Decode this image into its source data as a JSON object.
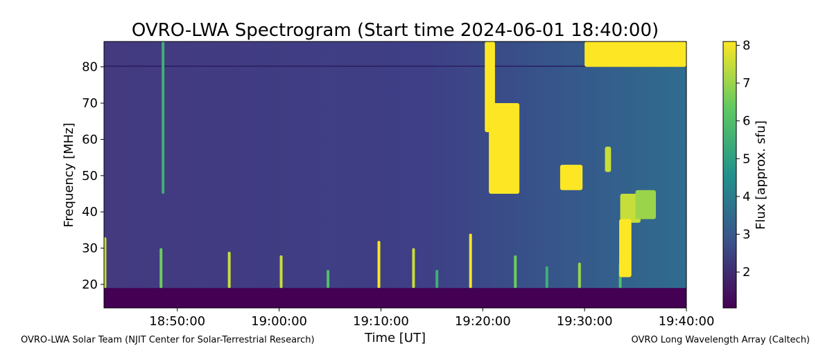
{
  "chart_data": {
    "type": "heatmap",
    "title": "OVRO-LWA Spectrogram (Start time 2024-06-01 18:40:00)",
    "xlabel": "Time [UT]",
    "ylabel": "Frequency [MHz]",
    "colorbar_label": "Flux [approx. sfu]",
    "colormap": "viridis",
    "colormap_stops": [
      "#440154",
      "#3b528b",
      "#21918c",
      "#5ec962",
      "#fde725"
    ],
    "x_ticks": [
      "18:50:00",
      "19:00:00",
      "19:10:00",
      "19:20:00",
      "19:30:00",
      "19:40:00"
    ],
    "x_tick_minutes": [
      10,
      20,
      30,
      40,
      50,
      60
    ],
    "xlim_minutes": [
      2.8,
      60
    ],
    "y_ticks": [
      20,
      30,
      40,
      50,
      60,
      70,
      80
    ],
    "ylim": [
      13.5,
      87
    ],
    "colorbar_ticks": [
      2,
      3,
      4,
      5,
      6,
      7,
      8
    ],
    "colorbar_range": [
      1.05,
      8.1
    ],
    "bursts": [
      {
        "t": 2.9,
        "f_low": 19,
        "f_high": 33,
        "flux": 7.5
      },
      {
        "t": 8.4,
        "f_low": 19,
        "f_high": 30,
        "flux": 6.5
      },
      {
        "t": 8.6,
        "f_low": 45,
        "f_high": 87,
        "flux": 5.5
      },
      {
        "t": 15.1,
        "f_low": 19,
        "f_high": 29,
        "flux": 7.5
      },
      {
        "t": 20.2,
        "f_low": 19,
        "f_high": 28,
        "flux": 7.5
      },
      {
        "t": 24.8,
        "f_low": 19,
        "f_high": 24,
        "flux": 6.0
      },
      {
        "t": 29.8,
        "f_low": 19,
        "f_high": 32,
        "flux": 8.0
      },
      {
        "t": 33.2,
        "f_low": 19,
        "f_high": 30,
        "flux": 7.5
      },
      {
        "t": 35.5,
        "f_low": 19,
        "f_high": 24,
        "flux": 5.5
      },
      {
        "t": 38.8,
        "f_low": 19,
        "f_high": 34,
        "flux": 8.0
      },
      {
        "t": 43.2,
        "f_low": 19,
        "f_high": 28,
        "flux": 6.5
      },
      {
        "t": 46.3,
        "f_low": 19,
        "f_high": 25,
        "flux": 5.5
      },
      {
        "t": 49.5,
        "f_low": 19,
        "f_high": 26,
        "flux": 7.0
      },
      {
        "t": 53.5,
        "f_low": 19,
        "f_high": 26,
        "flux": 6.0
      }
    ],
    "bright_regions": [
      {
        "t_start": 40.2,
        "t_end": 41.2,
        "f_low": 62,
        "f_high": 87,
        "flux": 8.1
      },
      {
        "t_start": 40.6,
        "t_end": 43.6,
        "f_low": 45,
        "f_high": 70,
        "flux": 8.1
      },
      {
        "t_start": 47.6,
        "t_end": 49.8,
        "f_low": 46,
        "f_high": 53,
        "flux": 8.1
      },
      {
        "t_start": 52.0,
        "t_end": 52.6,
        "f_low": 51,
        "f_high": 58,
        "flux": 7.5
      },
      {
        "t_start": 53.5,
        "t_end": 55.5,
        "f_low": 37,
        "f_high": 45,
        "flux": 7.5
      },
      {
        "t_start": 53.4,
        "t_end": 54.6,
        "f_low": 22,
        "f_high": 38,
        "flux": 8.1
      },
      {
        "t_start": 55.0,
        "t_end": 57.0,
        "f_low": 38,
        "f_high": 46,
        "flux": 7.0
      },
      {
        "t_start": 50.0,
        "t_end": 60.0,
        "f_low": 80,
        "f_high": 87,
        "flux": 8.1
      }
    ]
  },
  "footer": {
    "left": "OVRO-LWA Solar Team (NJIT Center for Solar-Terrestrial Research)",
    "right": "OVRO Long Wavelength Array (Caltech)"
  }
}
